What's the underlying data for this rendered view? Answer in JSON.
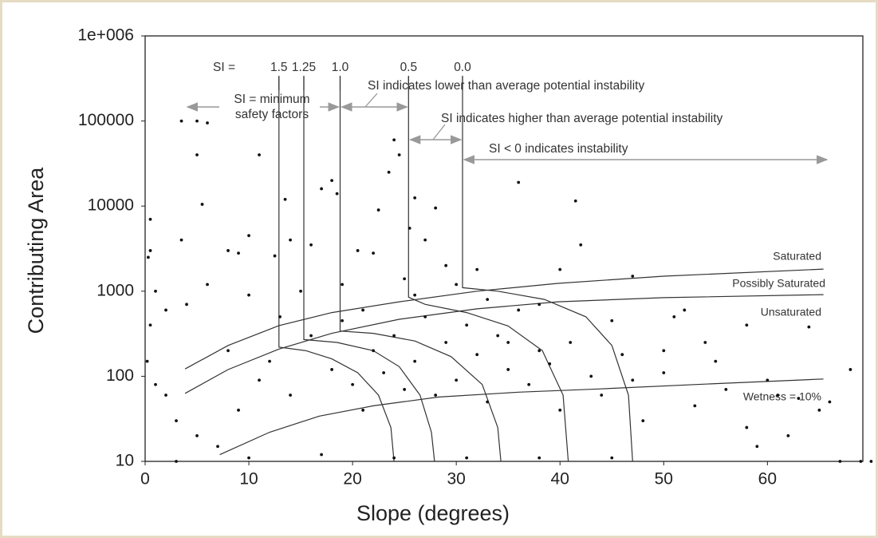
{
  "chart_data": {
    "type": "scatter",
    "x_label": "Slope (degrees)",
    "y_label": "Contributing Area",
    "xlim": [
      0,
      69.2
    ],
    "ylim": [
      10,
      1000000
    ],
    "log_y": true,
    "xticks": [
      0,
      10,
      20,
      30,
      40,
      50,
      60
    ],
    "yticks": [
      10,
      100,
      1000,
      10000,
      100000,
      {
        "value": 1000000,
        "label": "1e+006"
      }
    ],
    "points": {
      "color": "#111111",
      "x": [
        3.5,
        5,
        6,
        5,
        11,
        5.5,
        13.5,
        17,
        18,
        18.5,
        22.5,
        23.5,
        24,
        24.5,
        25.5,
        26,
        28,
        36,
        41.5,
        42,
        3.5,
        0.5,
        0.5,
        0.3,
        8,
        10,
        9,
        12.5,
        16,
        14,
        20.5,
        22,
        27,
        29,
        32,
        40,
        47,
        52,
        58,
        64,
        68,
        66,
        65,
        60,
        55,
        50,
        45,
        38,
        33,
        30,
        25,
        19,
        15,
        10,
        6,
        4,
        2,
        1,
        0.5,
        0.2,
        1,
        2,
        3,
        5,
        7,
        9,
        11,
        12,
        14,
        16,
        18,
        20,
        21,
        22,
        23,
        24,
        25,
        26,
        27,
        28,
        29,
        30,
        31,
        32,
        33,
        34,
        35,
        36,
        37,
        38,
        39,
        40,
        41,
        43,
        44,
        46,
        48,
        50,
        53,
        56,
        58,
        59,
        62,
        63,
        67,
        70,
        69,
        3,
        10,
        17,
        24,
        31,
        38,
        45,
        8,
        13,
        19,
        21,
        26,
        35,
        47,
        51,
        54,
        61
      ],
      "y": [
        100000,
        100000,
        95000,
        40000,
        40000,
        10500,
        12000,
        16000,
        20000,
        14000,
        9000,
        25000,
        60000,
        40000,
        5500,
        12500,
        9500,
        19000,
        11500,
        3500,
        4000,
        7000,
        3000,
        2500,
        3000,
        4500,
        2800,
        2600,
        3500,
        4000,
        3000,
        2800,
        4000,
        2000,
        1800,
        1800,
        1500,
        600,
        400,
        380,
        120,
        50,
        40,
        90,
        150,
        200,
        450,
        700,
        800,
        1200,
        1400,
        1200,
        1000,
        900,
        1200,
        700,
        600,
        1000,
        400,
        150,
        80,
        60,
        30,
        20,
        15,
        40,
        90,
        150,
        60,
        300,
        120,
        80,
        40,
        200,
        110,
        300,
        70,
        150,
        500,
        60,
        250,
        90,
        400,
        180,
        50,
        300,
        120,
        600,
        80,
        200,
        140,
        40,
        250,
        100,
        60,
        180,
        30,
        110,
        45,
        70,
        25,
        15,
        20,
        55,
        10,
        10,
        10,
        10,
        11,
        12,
        11,
        11,
        11,
        11,
        200,
        500,
        450,
        600,
        900,
        250,
        90,
        500,
        250,
        60
      ]
    },
    "lines": [
      {
        "name": "1.5",
        "x": [
          12.9,
          12.9,
          15.5,
          18,
          20.5,
          22.5,
          23.7,
          24
        ],
        "y": [
          340000,
          220,
          200,
          160,
          110,
          60,
          25,
          10
        ]
      },
      {
        "name": "1.25",
        "x": [
          15.3,
          15.3,
          18.5,
          22,
          24.5,
          26.5,
          27.6,
          27.9
        ],
        "y": [
          340000,
          270,
          250,
          200,
          130,
          60,
          22,
          10
        ]
      },
      {
        "name": "1.0",
        "x": [
          18.8,
          18.8,
          22,
          26,
          29.5,
          32.5,
          34,
          34.3
        ],
        "y": [
          340000,
          340,
          320,
          260,
          170,
          80,
          25,
          10
        ]
      },
      {
        "name": "0.5",
        "x": [
          25.4,
          25.4,
          27,
          31,
          35,
          38.3,
          40.3,
          40.8
        ],
        "y": [
          340000,
          850,
          700,
          560,
          390,
          200,
          60,
          10
        ]
      },
      {
        "name": "0.0",
        "x": [
          30.6,
          30.6,
          34,
          38.5,
          42.5,
          45,
          46.6,
          47
        ],
        "y": [
          340000,
          1100,
          1000,
          800,
          500,
          230,
          60,
          10
        ]
      },
      {
        "name": "Saturated",
        "x": [
          3.85,
          8,
          12.9,
          18,
          24.5,
          32,
          39.8,
          50,
          65.4
        ],
        "y": [
          122,
          230,
          394,
          560,
          751,
          1000,
          1235,
          1500,
          1820
        ]
      },
      {
        "name": "Possibly Saturated",
        "x": [
          3.85,
          8,
          12.9,
          18,
          24.5,
          32,
          39.8,
          50,
          65.4
        ],
        "y": [
          63,
          120,
          209,
          320,
          468,
          620,
          751,
          840,
          912
        ]
      },
      {
        "name": "Wetness = 10%",
        "x": [
          7.2,
          12,
          16.8,
          22,
          28.3,
          36,
          43.7,
          55,
          65.4
        ],
        "y": [
          12,
          22,
          34,
          45,
          57,
          65,
          71,
          82,
          93
        ]
      }
    ],
    "annotations": [
      "SI =",
      "SI = minimum",
      "safety factors",
      "SI indicates lower than average potential instability",
      "SI indicates higher than average potential instability",
      "SI < 0  indicates instability",
      "Unsaturated"
    ]
  }
}
